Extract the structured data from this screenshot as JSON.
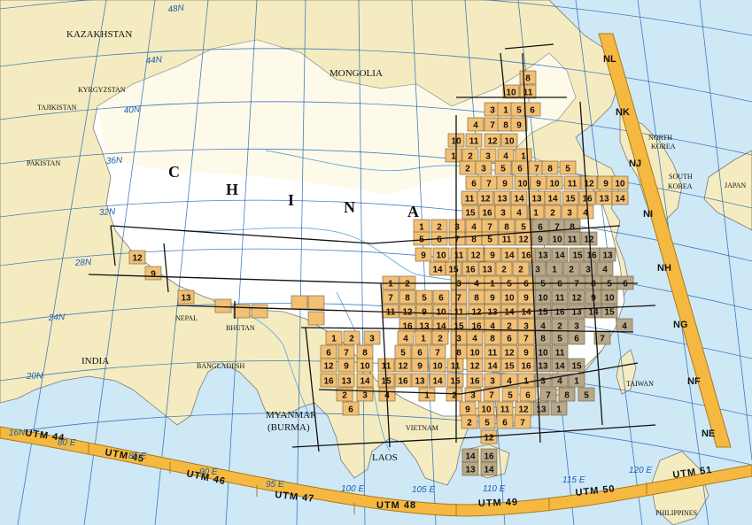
{
  "countries": {
    "kazakhstan": "KAZAKHSTAN",
    "mongolia": "MONGOLIA",
    "kyrgyzstan": "KYRGYZSTAN",
    "tajikistan": "TAJIKISTAN",
    "pakistan": "PAKISTAN",
    "china": [
      "C",
      "H",
      "I",
      "N",
      "A"
    ],
    "india": "INDIA",
    "nepal": "NEPAL",
    "bhutan": "BHUTAN",
    "bangladesh": "BANGLADESH",
    "myanmar_line1": "MYANMAR",
    "myanmar_line2": "(BURMA)",
    "vietnam": "VIETNAM",
    "laos": "LAOS",
    "north_korea_line1": "NORTH",
    "north_korea_line2": "KOREA",
    "south_korea_line1": "SOUTH",
    "south_korea_line2": "KOREA",
    "japan": "JAPAN",
    "taiwan": "TAIWAN",
    "philippines": "PHILIPPINES"
  },
  "latitudes": [
    "48N",
    "44N",
    "40N",
    "36N",
    "32N",
    "28N",
    "24N",
    "20N",
    "16N"
  ],
  "longitudes": [
    "80 E",
    "85 E",
    "90 E",
    "95 E",
    "100 E",
    "105 E",
    "110 E",
    "115 E",
    "120 E"
  ],
  "utm_zones": [
    "UTM 44",
    "UTM 45",
    "UTM 46",
    "UTM 47",
    "UTM 48",
    "UTM 49",
    "UTM 50",
    "UTM 51"
  ],
  "grid_zones": [
    "NL",
    "NK",
    "NJ",
    "NI",
    "NH",
    "NG",
    "NF",
    "NE"
  ],
  "colors": {
    "water": "#cfe8f5",
    "land": "#f4ecc0",
    "china_white": "#ffffff",
    "sheet": "#f2c074",
    "sheet_dark": "#b8a88a",
    "utm_band": "#f5b942",
    "graticule": "#1a5fb4"
  },
  "sheets": [
    {
      "n": "8"
    },
    {
      "n": "10"
    },
    {
      "n": "11"
    },
    {
      "n": "3"
    },
    {
      "n": "1"
    },
    {
      "n": "5"
    },
    {
      "n": "6"
    },
    {
      "n": "4"
    },
    {
      "n": "7"
    },
    {
      "n": "8"
    },
    {
      "n": "9"
    },
    {
      "n": "10"
    },
    {
      "n": "11"
    },
    {
      "n": "12"
    },
    {
      "n": "10"
    },
    {
      "n": "1"
    },
    {
      "n": "2"
    },
    {
      "n": "3"
    },
    {
      "n": "4"
    },
    {
      "n": "1"
    },
    {
      "n": "2"
    },
    {
      "n": "3"
    },
    {
      "n": "5"
    },
    {
      "n": "6"
    },
    {
      "n": "7"
    },
    {
      "n": "8"
    },
    {
      "n": "5"
    },
    {
      "n": "6"
    },
    {
      "n": "7"
    },
    {
      "n": "9"
    },
    {
      "n": "10"
    },
    {
      "n": "9"
    },
    {
      "n": "10"
    },
    {
      "n": "11"
    },
    {
      "n": "12"
    },
    {
      "n": "9"
    },
    {
      "n": "10"
    },
    {
      "n": "11"
    },
    {
      "n": "12"
    },
    {
      "n": "13"
    },
    {
      "n": "14"
    },
    {
      "n": "13"
    },
    {
      "n": "14"
    },
    {
      "n": "15"
    },
    {
      "n": "16"
    },
    {
      "n": "13"
    },
    {
      "n": "14"
    },
    {
      "n": "15"
    },
    {
      "n": "16"
    },
    {
      "n": "3"
    },
    {
      "n": "4"
    },
    {
      "n": "1"
    },
    {
      "n": "2"
    },
    {
      "n": "3"
    },
    {
      "n": "4"
    },
    {
      "n": "1"
    },
    {
      "n": "2"
    },
    {
      "n": "3"
    },
    {
      "n": "4"
    },
    {
      "n": "7"
    },
    {
      "n": "8"
    },
    {
      "n": "5"
    },
    {
      "n": "6"
    },
    {
      "n": "7"
    },
    {
      "n": "8"
    },
    {
      "n": "5"
    },
    {
      "n": "6"
    },
    {
      "n": "7"
    },
    {
      "n": "8"
    },
    {
      "n": "5"
    },
    {
      "n": "11"
    },
    {
      "n": "12"
    },
    {
      "n": "9"
    },
    {
      "n": "10"
    },
    {
      "n": "11"
    },
    {
      "n": "12"
    },
    {
      "n": "9"
    },
    {
      "n": "10"
    },
    {
      "n": "11"
    },
    {
      "n": "12"
    },
    {
      "n": "9"
    },
    {
      "n": "14"
    },
    {
      "n": "16"
    },
    {
      "n": "13"
    },
    {
      "n": "14"
    },
    {
      "n": "15"
    },
    {
      "n": "16"
    },
    {
      "n": "13"
    },
    {
      "n": "14"
    },
    {
      "n": "15"
    },
    {
      "n": "16"
    },
    {
      "n": "13"
    },
    {
      "n": "2"
    },
    {
      "n": "2"
    },
    {
      "n": "3"
    },
    {
      "n": "1"
    },
    {
      "n": "2"
    },
    {
      "n": "3"
    },
    {
      "n": "4"
    },
    {
      "n": "1"
    },
    {
      "n": "2"
    },
    {
      "n": "3"
    },
    {
      "n": "4"
    },
    {
      "n": "1"
    },
    {
      "n": "5"
    },
    {
      "n": "6"
    },
    {
      "n": "5"
    },
    {
      "n": "6"
    },
    {
      "n": "7"
    },
    {
      "n": "8"
    },
    {
      "n": "5"
    },
    {
      "n": "6"
    },
    {
      "n": "7"
    },
    {
      "n": "8"
    },
    {
      "n": "5"
    },
    {
      "n": "6"
    },
    {
      "n": "7"
    },
    {
      "n": "8"
    },
    {
      "n": "9"
    },
    {
      "n": "10"
    },
    {
      "n": "9"
    },
    {
      "n": "10"
    },
    {
      "n": "11"
    },
    {
      "n": "12"
    },
    {
      "n": "9"
    },
    {
      "n": "10"
    },
    {
      "n": "11"
    },
    {
      "n": "12"
    },
    {
      "n": "9"
    },
    {
      "n": "10"
    },
    {
      "n": "11"
    },
    {
      "n": "12"
    },
    {
      "n": "13"
    },
    {
      "n": "14"
    },
    {
      "n": "14"
    },
    {
      "n": "15"
    },
    {
      "n": "16"
    },
    {
      "n": "13"
    },
    {
      "n": "14"
    },
    {
      "n": "15"
    },
    {
      "n": "16"
    },
    {
      "n": "13"
    },
    {
      "n": "14"
    },
    {
      "n": "15"
    },
    {
      "n": "16"
    },
    {
      "n": "4"
    },
    {
      "n": "2"
    },
    {
      "n": "3"
    },
    {
      "n": "4"
    },
    {
      "n": "2"
    },
    {
      "n": "3"
    },
    {
      "n": "4"
    },
    {
      "n": "1"
    },
    {
      "n": "2"
    },
    {
      "n": "3"
    },
    {
      "n": "4"
    },
    {
      "n": "1"
    },
    {
      "n": "2"
    },
    {
      "n": "3"
    },
    {
      "n": "4"
    },
    {
      "n": "8"
    },
    {
      "n": "6"
    },
    {
      "n": "7"
    },
    {
      "n": "8"
    },
    {
      "n": "5"
    },
    {
      "n": "6"
    },
    {
      "n": "7"
    },
    {
      "n": "6"
    },
    {
      "n": "7"
    },
    {
      "n": "8"
    },
    {
      "n": "5"
    },
    {
      "n": "6"
    },
    {
      "n": "7"
    },
    {
      "n": "8"
    },
    {
      "n": "10"
    },
    {
      "n": "11"
    },
    {
      "n": "12"
    },
    {
      "n": "9"
    },
    {
      "n": "10"
    },
    {
      "n": "11"
    },
    {
      "n": "12"
    },
    {
      "n": "9"
    },
    {
      "n": "10"
    },
    {
      "n": "11"
    },
    {
      "n": "12"
    },
    {
      "n": "9"
    },
    {
      "n": "10"
    },
    {
      "n": "11"
    },
    {
      "n": "12"
    },
    {
      "n": "14"
    },
    {
      "n": "15"
    },
    {
      "n": "16"
    },
    {
      "n": "13"
    },
    {
      "n": "14"
    },
    {
      "n": "15"
    },
    {
      "n": "16"
    },
    {
      "n": "13"
    },
    {
      "n": "14"
    },
    {
      "n": "15"
    },
    {
      "n": "16"
    },
    {
      "n": "13"
    },
    {
      "n": "14"
    },
    {
      "n": "15"
    },
    {
      "n": "16"
    },
    {
      "n": "3"
    },
    {
      "n": "4"
    },
    {
      "n": "1"
    },
    {
      "n": "3"
    },
    {
      "n": "4"
    },
    {
      "n": "1"
    },
    {
      "n": "2"
    },
    {
      "n": "3"
    },
    {
      "n": "4"
    },
    {
      "n": "1"
    },
    {
      "n": "2"
    },
    {
      "n": "3"
    },
    {
      "n": "7"
    },
    {
      "n": "5"
    },
    {
      "n": "6"
    },
    {
      "n": "7"
    },
    {
      "n": "8"
    },
    {
      "n": "5"
    },
    {
      "n": "6"
    },
    {
      "n": "9"
    },
    {
      "n": "10"
    },
    {
      "n": "11"
    },
    {
      "n": "12"
    },
    {
      "n": "13"
    },
    {
      "n": "1"
    },
    {
      "n": "2"
    },
    {
      "n": "5"
    },
    {
      "n": "6"
    },
    {
      "n": "7"
    },
    {
      "n": "12"
    },
    {
      "n": "14"
    },
    {
      "n": "16"
    },
    {
      "n": "13"
    },
    {
      "n": "14"
    },
    {
      "n": "12"
    },
    {
      "n": "9"
    },
    {
      "n": "13"
    }
  ]
}
